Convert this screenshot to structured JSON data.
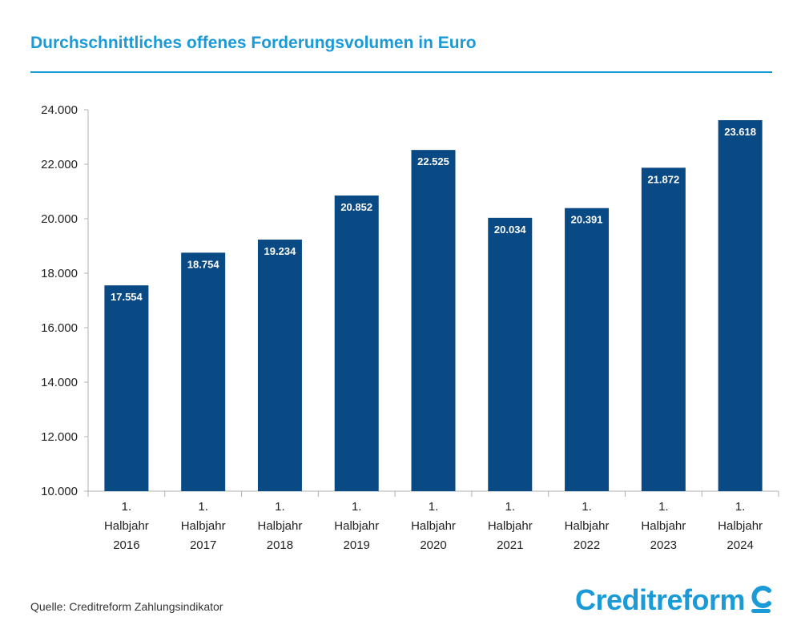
{
  "title": "Durchschnittliches offenes Forderungsvolumen in Euro",
  "source": "Quelle: Creditreform Zahlungsindikator",
  "logo_text": "Creditreform",
  "colors": {
    "accent": "#1a9bd7",
    "bar": "#0a4a84",
    "axis": "#b0b0b0",
    "text": "#222222"
  },
  "chart_data": {
    "type": "bar",
    "categories": [
      [
        "1.",
        "Halbjahr",
        "2016"
      ],
      [
        "1.",
        "Halbjahr",
        "2017"
      ],
      [
        "1.",
        "Halbjahr",
        "2018"
      ],
      [
        "1.",
        "Halbjahr",
        "2019"
      ],
      [
        "1.",
        "Halbjahr",
        "2020"
      ],
      [
        "1.",
        "Halbjahr",
        "2021"
      ],
      [
        "1.",
        "Halbjahr",
        "2022"
      ],
      [
        "1.",
        "Halbjahr",
        "2023"
      ],
      [
        "1.",
        "Halbjahr",
        "2024"
      ]
    ],
    "values": [
      17554,
      18754,
      19234,
      20852,
      22525,
      20034,
      20391,
      21872,
      23618
    ],
    "value_labels": [
      "17.554",
      "18.754",
      "19.234",
      "20.852",
      "22.525",
      "20.034",
      "20.391",
      "21.872",
      "23.618"
    ],
    "yticks": [
      10000,
      12000,
      14000,
      16000,
      18000,
      20000,
      22000,
      24000
    ],
    "ytick_labels": [
      "10.000",
      "12.000",
      "14.000",
      "16.000",
      "18.000",
      "20.000",
      "22.000",
      "24.000"
    ],
    "ylim": [
      10000,
      24000
    ],
    "grid": false,
    "legend": "none"
  }
}
